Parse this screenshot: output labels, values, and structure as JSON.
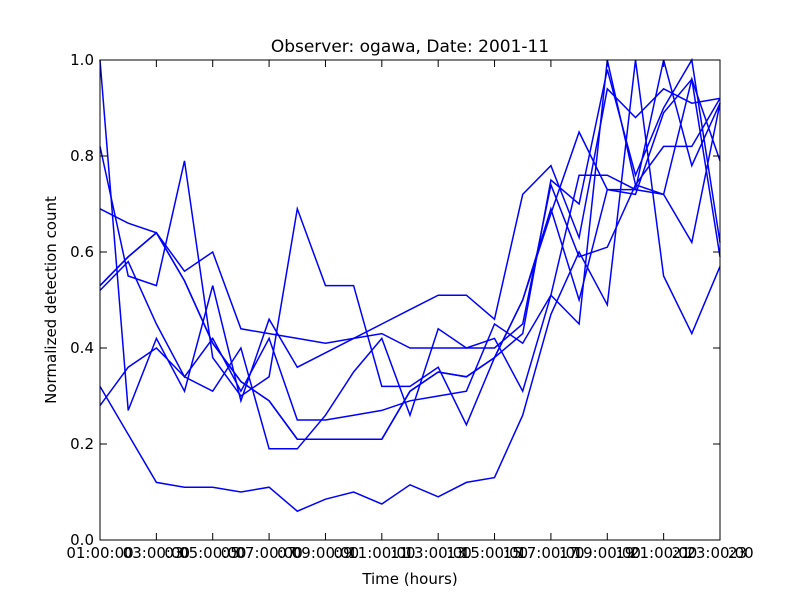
{
  "chart_data": {
    "type": "line",
    "title": "Observer: ogawa, Date: 2001-11",
    "xlabel": "Time (hours)",
    "ylabel": "Normalized detection count",
    "x_tick_labels": [
      "01:00:00",
      "03:00:00",
      "05:00:00",
      "07:00:00",
      "09:00:00",
      "11:00:00",
      "13:00:00",
      "15:00:00",
      "17:00:00",
      "19:00:00",
      "21:00:00",
      "23:00:00"
    ],
    "overlap_tick_labels": [
      "03",
      "05",
      "07",
      "09",
      "11",
      "13",
      "15",
      "17",
      "19",
      "21",
      "23"
    ],
    "y_tick_labels": [
      "0.0",
      "0.2",
      "0.4",
      "0.6",
      "0.8",
      "1.0"
    ],
    "xlim": [
      1,
      23
    ],
    "ylim": [
      0.0,
      1.0
    ],
    "grid": false,
    "line_color": "#0000ff",
    "x": [
      1,
      2,
      3,
      4,
      5,
      6,
      7,
      8,
      9,
      10,
      11,
      12,
      13,
      14,
      15,
      16,
      17,
      18,
      19,
      20,
      21,
      22,
      23
    ],
    "series": [
      {
        "values": [
          0.32,
          0.22,
          0.12,
          0.11,
          0.11,
          0.1,
          0.11,
          0.06,
          0.085,
          0.1,
          0.075,
          0.115,
          0.09,
          0.12,
          0.13,
          0.26,
          0.47,
          0.6,
          0.49,
          1.0,
          0.55,
          0.43,
          0.57
        ]
      },
      {
        "values": [
          1.0,
          0.27,
          0.42,
          0.31,
          0.53,
          0.29,
          0.46,
          0.36,
          0.39,
          0.42,
          0.45,
          0.48,
          0.51,
          0.51,
          0.46,
          0.72,
          0.78,
          0.63,
          0.94,
          0.88,
          0.94,
          0.91,
          0.92
        ]
      },
      {
        "values": [
          0.28,
          0.36,
          0.4,
          0.34,
          0.31,
          0.4,
          0.19,
          0.19,
          0.26,
          0.35,
          0.42,
          0.26,
          0.44,
          0.4,
          0.4,
          0.45,
          0.74,
          0.59,
          0.61,
          0.74,
          0.72,
          0.62,
          0.91
        ]
      },
      {
        "values": [
          0.52,
          0.58,
          0.45,
          0.34,
          0.42,
          0.31,
          0.42,
          0.25,
          0.25,
          0.26,
          0.27,
          0.29,
          0.3,
          0.31,
          0.45,
          0.41,
          0.51,
          0.45,
          1.0,
          0.74,
          0.82,
          0.82,
          0.92
        ]
      },
      {
        "values": [
          0.69,
          0.66,
          0.64,
          0.56,
          0.6,
          0.44,
          0.43,
          0.42,
          0.41,
          0.42,
          0.43,
          0.4,
          0.4,
          0.4,
          0.42,
          0.31,
          0.51,
          0.76,
          0.76,
          0.73,
          0.72,
          0.96,
          0.79
        ]
      },
      {
        "values": [
          0.82,
          0.55,
          0.53,
          0.79,
          0.38,
          0.3,
          0.34,
          0.69,
          0.53,
          0.53,
          0.32,
          0.32,
          0.36,
          0.24,
          0.38,
          0.43,
          0.75,
          0.7,
          0.98,
          0.76,
          0.9,
          1.0,
          0.62
        ]
      },
      {
        "values": [
          0.53,
          0.59,
          0.64,
          0.54,
          0.41,
          0.33,
          0.29,
          0.21,
          0.21,
          0.21,
          0.21,
          0.31,
          0.35,
          0.34,
          0.38,
          0.5,
          0.69,
          0.5,
          0.73,
          0.72,
          0.89,
          0.96,
          0.59
        ]
      },
      {
        "values": [
          0.53,
          0.59,
          0.64,
          0.54,
          0.41,
          0.33,
          0.29,
          0.21,
          0.21,
          0.21,
          0.21,
          0.31,
          0.35,
          0.34,
          0.38,
          0.5,
          0.68,
          0.85,
          0.73,
          0.73,
          1.0,
          0.78,
          0.91
        ]
      }
    ]
  }
}
